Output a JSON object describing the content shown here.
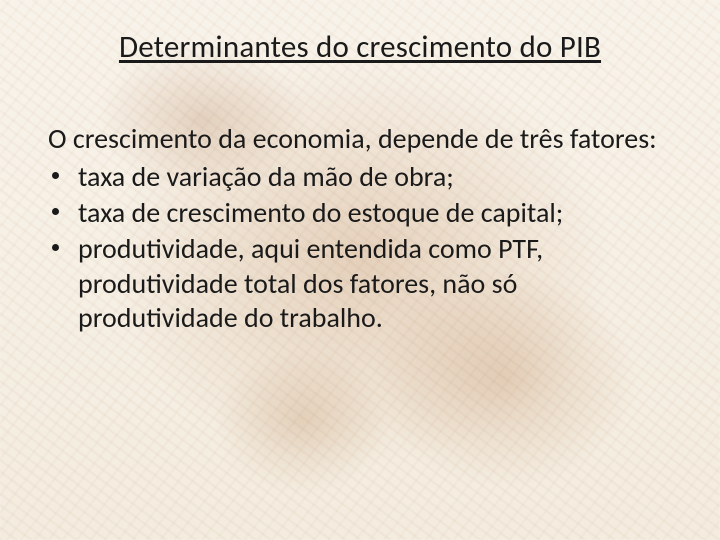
{
  "colors": {
    "text": "#1a1a1a",
    "background_base": "#f8f3ea",
    "map_tint_primary": "#b47846",
    "map_tint_secondary": "#a06437"
  },
  "typography": {
    "family": "Calibri",
    "title_size_pt": 31,
    "body_size_pt": 28,
    "title_underlined": true,
    "line_height": 1.22
  },
  "title": "Determinantes do crescimento do PIB",
  "intro": "O crescimento da economia, depende de três fatores:",
  "bullets": [
    "taxa de variação da mão de obra;",
    "taxa de crescimento do estoque de capital;",
    "produtividade, aqui entendida como PTF, produtividade total dos fatores,  não só produtividade do trabalho."
  ]
}
